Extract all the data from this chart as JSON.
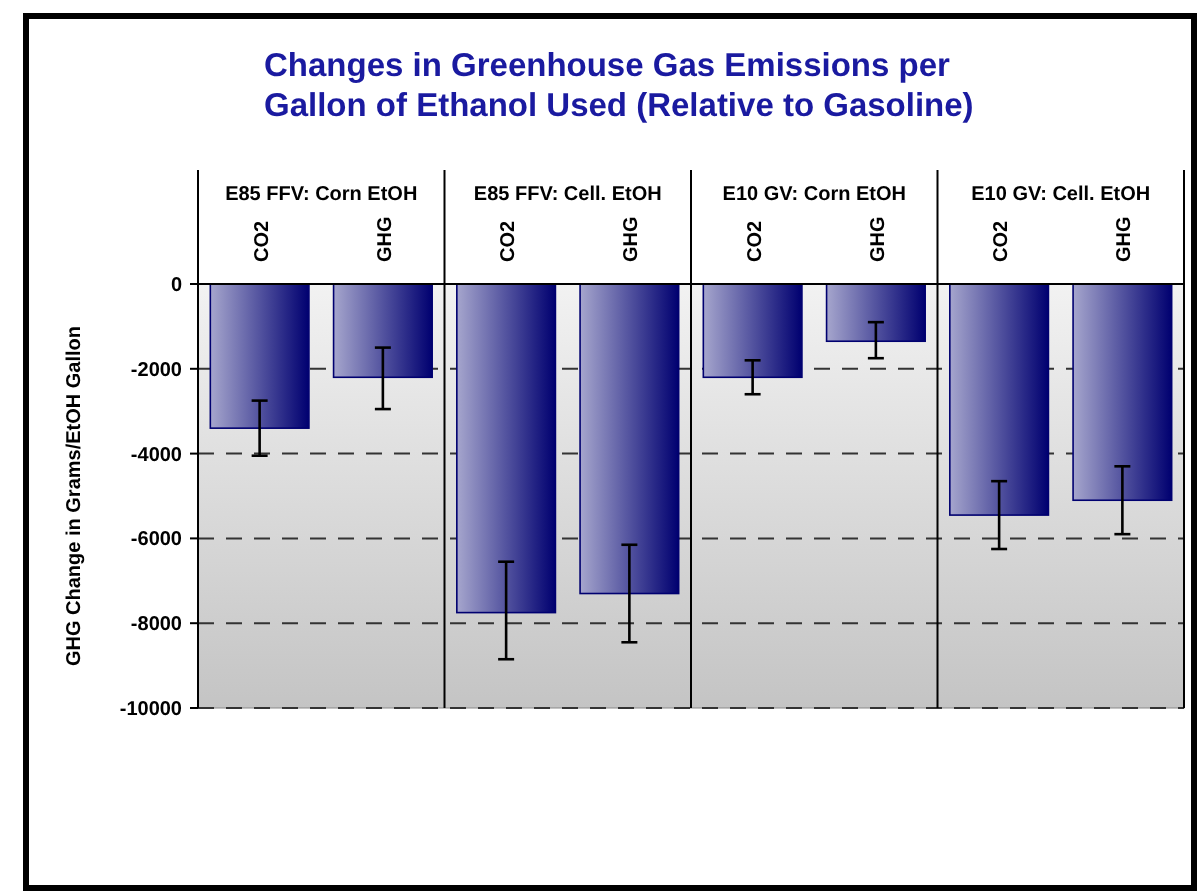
{
  "chart_data": {
    "type": "bar",
    "title": "Changes in Greenhouse Gas Emissions per Gallon of Ethanol Used (Relative to Gasoline)",
    "ylabel": "GHG Change in Grams/EtOH Gallon",
    "categories": [
      "CO2",
      "GHG",
      "CO2",
      "GHG",
      "CO2",
      "GHG",
      "CO2",
      "GHG"
    ],
    "values": [
      -3400,
      -2200,
      -7750,
      -7300,
      -2200,
      -1350,
      -5450,
      -5100
    ],
    "errors": [
      [
        -4050,
        -2750
      ],
      [
        -2950,
        -1500
      ],
      [
        -8850,
        -6550
      ],
      [
        -8450,
        -6150
      ],
      [
        -2600,
        -1800
      ],
      [
        -1750,
        -900
      ],
      [
        -6250,
        -4650
      ],
      [
        -5900,
        -4300
      ]
    ],
    "color": "#000070",
    "ylim": [
      -10000,
      0
    ],
    "yticks": [
      -10000,
      -8000,
      -6000,
      -4000,
      -2000,
      0
    ],
    "grid": "y",
    "annotations": [
      "E85 FFV: Corn EtOH",
      "E85 FFV: Cell. EtOH",
      "E10 GV: Corn EtOH",
      "E10 GV: Cell. EtOH"
    ]
  }
}
